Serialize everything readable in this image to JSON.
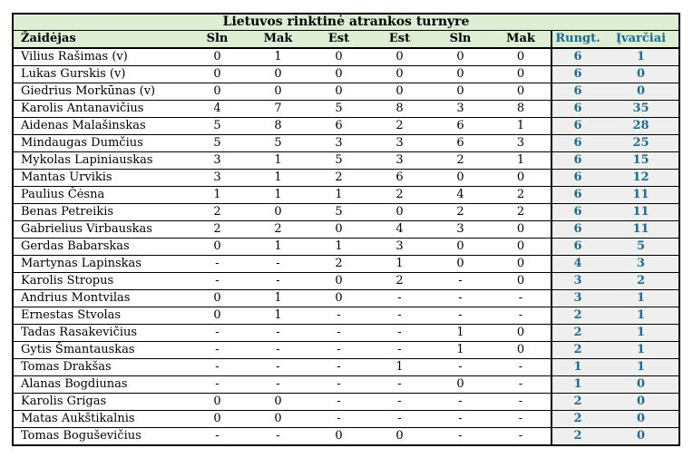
{
  "table": {
    "title": "Lietuvos rinktinė atrankos turnyre",
    "columns": [
      "Žaidėjas",
      "Sln",
      "Mak",
      "Est",
      "Est",
      "Sln",
      "Mak",
      "Rungt.",
      "Įvarčiai"
    ],
    "rows": [
      {
        "player": "Vilius Rašimas (v)",
        "stats": [
          "0",
          "1",
          "0",
          "0",
          "0",
          "0"
        ],
        "matches": "6",
        "goals": "1"
      },
      {
        "player": "Lukas Gurskis (v)",
        "stats": [
          "0",
          "0",
          "0",
          "0",
          "0",
          "0"
        ],
        "matches": "6",
        "goals": "0"
      },
      {
        "player": "Giedrius Morkūnas (v)",
        "stats": [
          "0",
          "0",
          "0",
          "0",
          "0",
          "0"
        ],
        "matches": "6",
        "goals": "0"
      },
      {
        "player": "Karolis Antanavičius",
        "stats": [
          "4",
          "7",
          "5",
          "8",
          "3",
          "8"
        ],
        "matches": "6",
        "goals": "35"
      },
      {
        "player": "Aidenas Malašinskas",
        "stats": [
          "5",
          "8",
          "6",
          "2",
          "6",
          "1"
        ],
        "matches": "6",
        "goals": "28"
      },
      {
        "player": "Mindaugas Dumčius",
        "stats": [
          "5",
          "5",
          "3",
          "3",
          "6",
          "3"
        ],
        "matches": "6",
        "goals": "25"
      },
      {
        "player": "Mykolas Lapiniauskas",
        "stats": [
          "3",
          "1",
          "5",
          "3",
          "2",
          "1"
        ],
        "matches": "6",
        "goals": "15"
      },
      {
        "player": "Mantas Urvikis",
        "stats": [
          "3",
          "1",
          "2",
          "6",
          "0",
          "0"
        ],
        "matches": "6",
        "goals": "12"
      },
      {
        "player": "Paulius Čėsna",
        "stats": [
          "1",
          "1",
          "1",
          "2",
          "4",
          "2"
        ],
        "matches": "6",
        "goals": "11"
      },
      {
        "player": "Benas Petreikis",
        "stats": [
          "2",
          "0",
          "5",
          "0",
          "2",
          "2"
        ],
        "matches": "6",
        "goals": "11"
      },
      {
        "player": "Gabrielius Virbauskas",
        "stats": [
          "2",
          "2",
          "0",
          "4",
          "3",
          "0"
        ],
        "matches": "6",
        "goals": "11"
      },
      {
        "player": "Gerdas Babarskas",
        "stats": [
          "0",
          "1",
          "1",
          "3",
          "0",
          "0"
        ],
        "matches": "6",
        "goals": "5"
      },
      {
        "player": "Martynas Lapinskas",
        "stats": [
          "-",
          "-",
          "2",
          "1",
          "0",
          "0"
        ],
        "matches": "4",
        "goals": "3"
      },
      {
        "player": "Karolis Stropus",
        "stats": [
          "-",
          "-",
          "0",
          "2",
          "-",
          "0"
        ],
        "matches": "3",
        "goals": "2"
      },
      {
        "player": "Andrius Montvilas",
        "stats": [
          "0",
          "1",
          "0",
          "-",
          "-",
          "-"
        ],
        "matches": "3",
        "goals": "1"
      },
      {
        "player": "Ernestas Stvolas",
        "stats": [
          "0",
          "1",
          "-",
          "-",
          "-",
          "-"
        ],
        "matches": "2",
        "goals": "1"
      },
      {
        "player": "Tadas Rasakevičius",
        "stats": [
          "-",
          "-",
          "-",
          "-",
          "1",
          "0"
        ],
        "matches": "2",
        "goals": "1"
      },
      {
        "player": "Gytis Šmantauskas",
        "stats": [
          "-",
          "-",
          "-",
          "-",
          "1",
          "0"
        ],
        "matches": "2",
        "goals": "1"
      },
      {
        "player": "Tomas Drakšas",
        "stats": [
          "-",
          "-",
          "-",
          "1",
          "-",
          "-"
        ],
        "matches": "1",
        "goals": "1"
      },
      {
        "player": "Alanas Bogdiunas",
        "stats": [
          "-",
          "-",
          "-",
          "-",
          "0",
          "-"
        ],
        "matches": "1",
        "goals": "0"
      },
      {
        "player": "Karolis Grigas",
        "stats": [
          "0",
          "0",
          "-",
          "-",
          "-",
          "-"
        ],
        "matches": "2",
        "goals": "0"
      },
      {
        "player": "Matas Aukštikalnis",
        "stats": [
          "0",
          "0",
          "-",
          "-",
          "-",
          "-"
        ],
        "matches": "2",
        "goals": "0"
      },
      {
        "player": "Tomas Boguševičius",
        "stats": [
          "-",
          "-",
          "0",
          "0",
          "-",
          "-"
        ],
        "matches": "2",
        "goals": "0"
      }
    ],
    "colors": {
      "header_bg": "#ddeed5",
      "totals_bg": "#efefef",
      "accent_text": "#1e6a8e",
      "border": "#000000"
    }
  }
}
